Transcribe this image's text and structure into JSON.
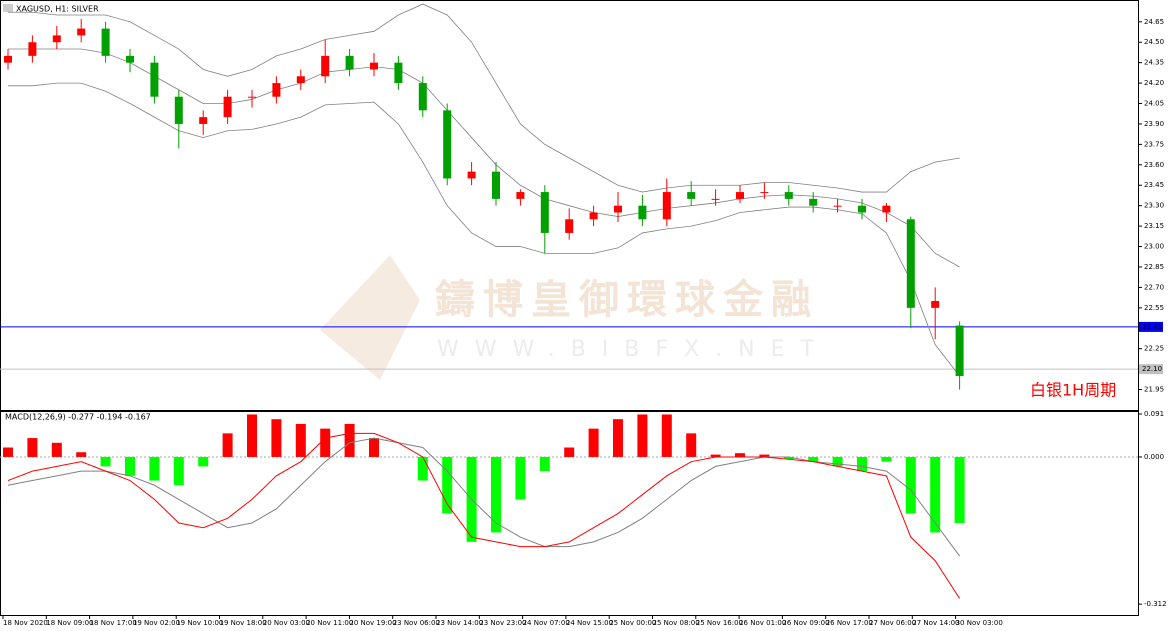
{
  "watermark": {
    "name": "鑄博皇御環球金融",
    "url": "WWW.BIBFX.NET"
  },
  "chart_data": [
    {
      "type": "candlestick",
      "title": "XAGUSD, H1: SILVER",
      "annotation": "白银1H周期",
      "up_color": "#ff0000",
      "down_color": "#00a000",
      "band_color": "#808080",
      "x_labels": [
        "18 Nov 2020",
        "18 Nov 09:00",
        "18 Nov 17:00",
        "19 Nov 02:00",
        "19 Nov 10:00",
        "19 Nov 18:00",
        "20 Nov 03:00",
        "20 Nov 11:00",
        "20 Nov 19:00",
        "23 Nov 06:00",
        "23 Nov 14:00",
        "23 Nov 23:00",
        "24 Nov 07:00",
        "24 Nov 15:00",
        "25 Nov 00:00",
        "25 Nov 08:00",
        "25 Nov 16:00",
        "26 Nov 01:00",
        "26 Nov 09:00",
        "26 Nov 17:00",
        "27 Nov 06:00",
        "27 Nov 14:00",
        "30 Nov 03:00"
      ],
      "open": [
        24.35,
        24.4,
        24.5,
        24.55,
        24.6,
        24.4,
        24.35,
        24.1,
        23.9,
        23.95,
        24.1,
        24.1,
        24.2,
        24.25,
        24.4,
        24.3,
        24.35,
        24.2,
        24.0,
        23.5,
        23.55,
        23.35,
        23.4,
        23.1,
        23.2,
        23.25,
        23.3,
        23.2,
        23.4,
        23.35,
        23.35,
        23.4,
        23.4,
        23.35,
        23.3,
        23.3,
        23.25,
        23.2,
        22.55,
        22.42
      ],
      "high": [
        24.45,
        24.55,
        24.62,
        24.67,
        24.65,
        24.45,
        24.4,
        24.15,
        24.0,
        24.15,
        24.15,
        24.25,
        24.3,
        24.52,
        24.45,
        24.42,
        24.4,
        24.25,
        24.05,
        23.62,
        23.62,
        23.42,
        23.45,
        23.28,
        23.3,
        23.4,
        23.38,
        23.5,
        23.48,
        23.42,
        23.45,
        23.47,
        23.45,
        23.4,
        23.35,
        23.35,
        23.32,
        23.22,
        22.7,
        22.45
      ],
      "low": [
        24.3,
        24.35,
        24.45,
        24.5,
        24.35,
        24.28,
        24.05,
        23.72,
        23.82,
        23.9,
        24.02,
        24.05,
        24.15,
        24.2,
        24.25,
        24.25,
        24.15,
        23.95,
        23.45,
        23.45,
        23.3,
        23.3,
        22.95,
        23.05,
        23.15,
        23.18,
        23.15,
        23.15,
        23.3,
        23.3,
        23.32,
        23.35,
        23.3,
        23.25,
        23.25,
        23.2,
        23.18,
        22.4,
        22.32,
        21.95
      ],
      "close": [
        24.4,
        24.5,
        24.55,
        24.6,
        24.4,
        24.35,
        24.1,
        23.9,
        23.95,
        24.1,
        24.1,
        24.2,
        24.25,
        24.4,
        24.3,
        24.35,
        24.2,
        24.0,
        23.5,
        23.55,
        23.35,
        23.4,
        23.1,
        23.2,
        23.25,
        23.3,
        23.2,
        23.4,
        23.35,
        23.35,
        23.4,
        23.4,
        23.35,
        23.3,
        23.3,
        23.25,
        23.3,
        22.55,
        22.6,
        22.05
      ],
      "upper": [
        24.72,
        24.72,
        24.7,
        24.7,
        24.7,
        24.65,
        24.55,
        24.45,
        24.3,
        24.25,
        24.3,
        24.4,
        24.45,
        24.52,
        24.55,
        24.58,
        24.7,
        24.78,
        24.7,
        24.5,
        24.2,
        23.9,
        23.75,
        23.65,
        23.55,
        23.45,
        23.4,
        23.43,
        23.45,
        23.45,
        23.45,
        23.47,
        23.47,
        23.45,
        23.43,
        23.4,
        23.4,
        23.55,
        23.62,
        23.65
      ],
      "middle": [
        24.45,
        24.45,
        24.45,
        24.45,
        24.42,
        24.35,
        24.25,
        24.15,
        24.05,
        24.05,
        24.08,
        24.15,
        24.2,
        24.28,
        24.3,
        24.32,
        24.3,
        24.2,
        24.0,
        23.8,
        23.6,
        23.45,
        23.35,
        23.3,
        23.25,
        23.22,
        23.25,
        23.28,
        23.3,
        23.32,
        23.35,
        23.37,
        23.38,
        23.37,
        23.35,
        23.32,
        23.25,
        23.15,
        22.95,
        22.85
      ],
      "lower": [
        24.18,
        24.18,
        24.2,
        24.2,
        24.14,
        24.05,
        23.95,
        23.85,
        23.8,
        23.85,
        23.86,
        23.9,
        23.95,
        24.04,
        24.05,
        24.06,
        23.9,
        23.62,
        23.3,
        23.1,
        23.0,
        23.0,
        22.95,
        22.95,
        22.95,
        22.99,
        23.1,
        23.13,
        23.15,
        23.19,
        23.25,
        23.27,
        23.29,
        23.29,
        23.27,
        23.24,
        23.1,
        22.75,
        22.28,
        22.05
      ],
      "ylim": [
        21.8,
        24.81
      ],
      "yticks": [
        24.65,
        {
          "value": 24.5,
          "label": "24.50"
        },
        24.35,
        {
          "value": 24.2,
          "label": "24.20"
        },
        24.05,
        {
          "value": 23.9,
          "label": "23.90"
        },
        23.75,
        {
          "value": 23.6,
          "label": "23.60"
        },
        23.45,
        {
          "value": 23.3,
          "label": "23.30"
        },
        23.15,
        {
          "value": 23,
          "label": "23.00"
        },
        22.85,
        {
          "value": 22.7,
          "label": "22.70"
        },
        22.55,
        22.25,
        21.95
      ],
      "hlines": [
        {
          "value": 22.41,
          "color": "#0000ff"
        },
        {
          "value": {
            "value": 22.1,
            "label": "22.10"
          },
          "color": "#c0c0c0"
        }
      ]
    },
    {
      "type": "macd",
      "title": "MACD(12,26,9) -0.277 -0.194 -0.167",
      "pos_color": "#ff0000",
      "neg_color": "#00ff00",
      "macd_color": "#ff0000",
      "signal_color": "#808080",
      "histogram": [
        0.02,
        0.04,
        0.03,
        0.01,
        -0.02,
        -0.04,
        -0.05,
        -0.06,
        -0.02,
        0.05,
        0.09,
        0.08,
        0.07,
        0.06,
        0.07,
        0.04,
        0,
        -0.05,
        -0.12,
        -0.18,
        -0.16,
        -0.09,
        -0.03,
        0.02,
        0.06,
        0.08,
        0.09,
        0.09,
        0.05,
        0.005,
        0.008,
        0.005,
        -0.005,
        -0.01,
        -0.02,
        -0.03,
        -0.01,
        -0.12,
        -0.16,
        -0.14
      ],
      "macd": [
        -0.05,
        -0.03,
        -0.02,
        -0.01,
        -0.03,
        -0.05,
        -0.09,
        -0.14,
        -0.15,
        -0.13,
        -0.09,
        -0.04,
        -0.01,
        0.04,
        0.05,
        0.05,
        0.03,
        0,
        -0.1,
        -0.17,
        -0.18,
        -0.19,
        -0.19,
        -0.18,
        -0.15,
        -0.12,
        -0.08,
        -0.04,
        -0.01,
        0,
        0,
        0,
        -0.005,
        -0.01,
        -0.02,
        -0.03,
        -0.04,
        -0.17,
        -0.22,
        -0.3
      ],
      "signal": [
        -0.06,
        -0.05,
        -0.04,
        -0.03,
        -0.03,
        -0.04,
        -0.06,
        -0.09,
        -0.12,
        -0.15,
        -0.14,
        -0.11,
        -0.06,
        -0.01,
        0.03,
        0.04,
        0.03,
        0.02,
        -0.03,
        -0.09,
        -0.14,
        -0.17,
        -0.19,
        -0.19,
        -0.18,
        -0.16,
        -0.13,
        -0.09,
        -0.05,
        -0.02,
        -0.01,
        0,
        0,
        -0.01,
        -0.015,
        -0.02,
        -0.03,
        -0.07,
        -0.14,
        -0.21
      ],
      "ylim": [
        -0.335,
        0.0974
      ],
      "yticks": [
        0.091,
        {
          "value": 0,
          "label": "0.000"
        },
        -0.312
      ]
    }
  ]
}
